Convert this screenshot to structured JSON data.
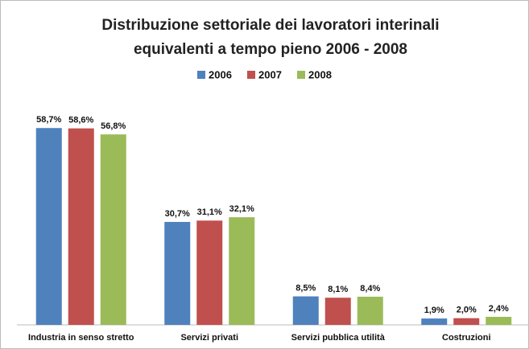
{
  "chart_data": {
    "type": "bar",
    "title": "Distribuzione settoriale dei lavoratori interinali equivalenti a tempo pieno 2006 - 2008",
    "categories": [
      "Industria in senso stretto",
      "Servizi privati",
      "Servizi pubblica utilità",
      "Costruzioni"
    ],
    "series": [
      {
        "name": "2006",
        "color": "#4f81bd",
        "values": [
          58.7,
          30.7,
          8.5,
          1.9
        ],
        "value_labels": [
          "58,7%",
          "30,7%",
          "8,5%",
          "1,9%"
        ]
      },
      {
        "name": "2007",
        "color": "#c0504d",
        "values": [
          58.6,
          31.1,
          8.1,
          2.0
        ],
        "value_labels": [
          "58,6%",
          "31,1%",
          "8,1%",
          "2,0%"
        ]
      },
      {
        "name": "2008",
        "color": "#9bbb59",
        "values": [
          56.8,
          32.1,
          8.4,
          2.4
        ],
        "value_labels": [
          "56,8%",
          "32,1%",
          "8,4%",
          "2,4%"
        ]
      }
    ],
    "legend": "top"
  }
}
